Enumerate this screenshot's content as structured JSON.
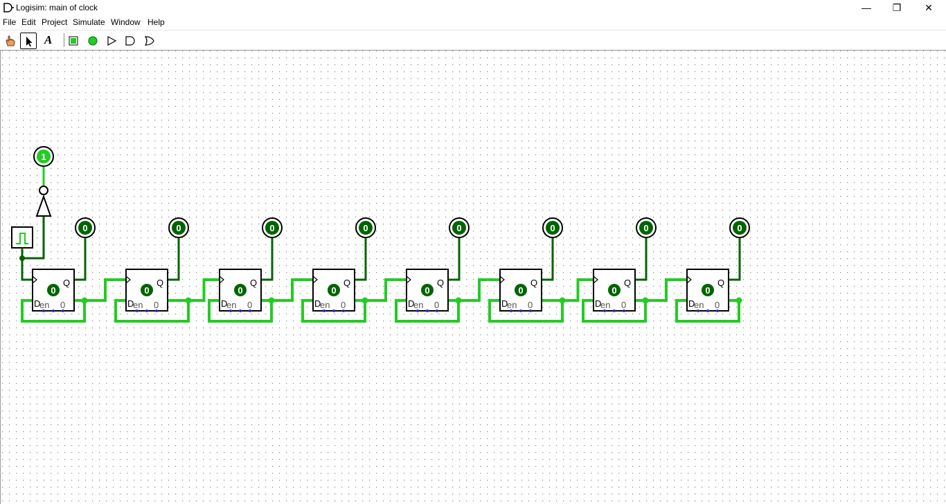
{
  "window": {
    "title": "Logisim: main of clock",
    "minimize_glyph": "—",
    "maximize_glyph": "❐",
    "close_glyph": "✕"
  },
  "menu": [
    "File",
    "Edit",
    "Project",
    "Simulate",
    "Window",
    "Help"
  ],
  "toolbar": {
    "tools": [
      "hand-poke-icon",
      "select-arrow-icon",
      "text-tool-icon",
      "input-pin-icon",
      "output-pin-icon",
      "not-gate-icon",
      "and-gate-icon",
      "or-gate-icon"
    ],
    "text_tool_glyph": "A"
  },
  "circuit": {
    "top_probe_value": "1",
    "flipflop_labels": {
      "d": "D",
      "q": "Q",
      "en": "en",
      "zero": "0",
      "state": "0"
    },
    "output_probe_values": [
      "0",
      "0",
      "0",
      "0",
      "0",
      "0",
      "0",
      "0"
    ]
  },
  "colors": {
    "wire_on": "#22cc22",
    "wire_off": "#006400",
    "probe_on": "#22cc22",
    "probe_off": "#006400",
    "grid_dot": "#808080",
    "pin_blue": "#2a2ad0"
  }
}
